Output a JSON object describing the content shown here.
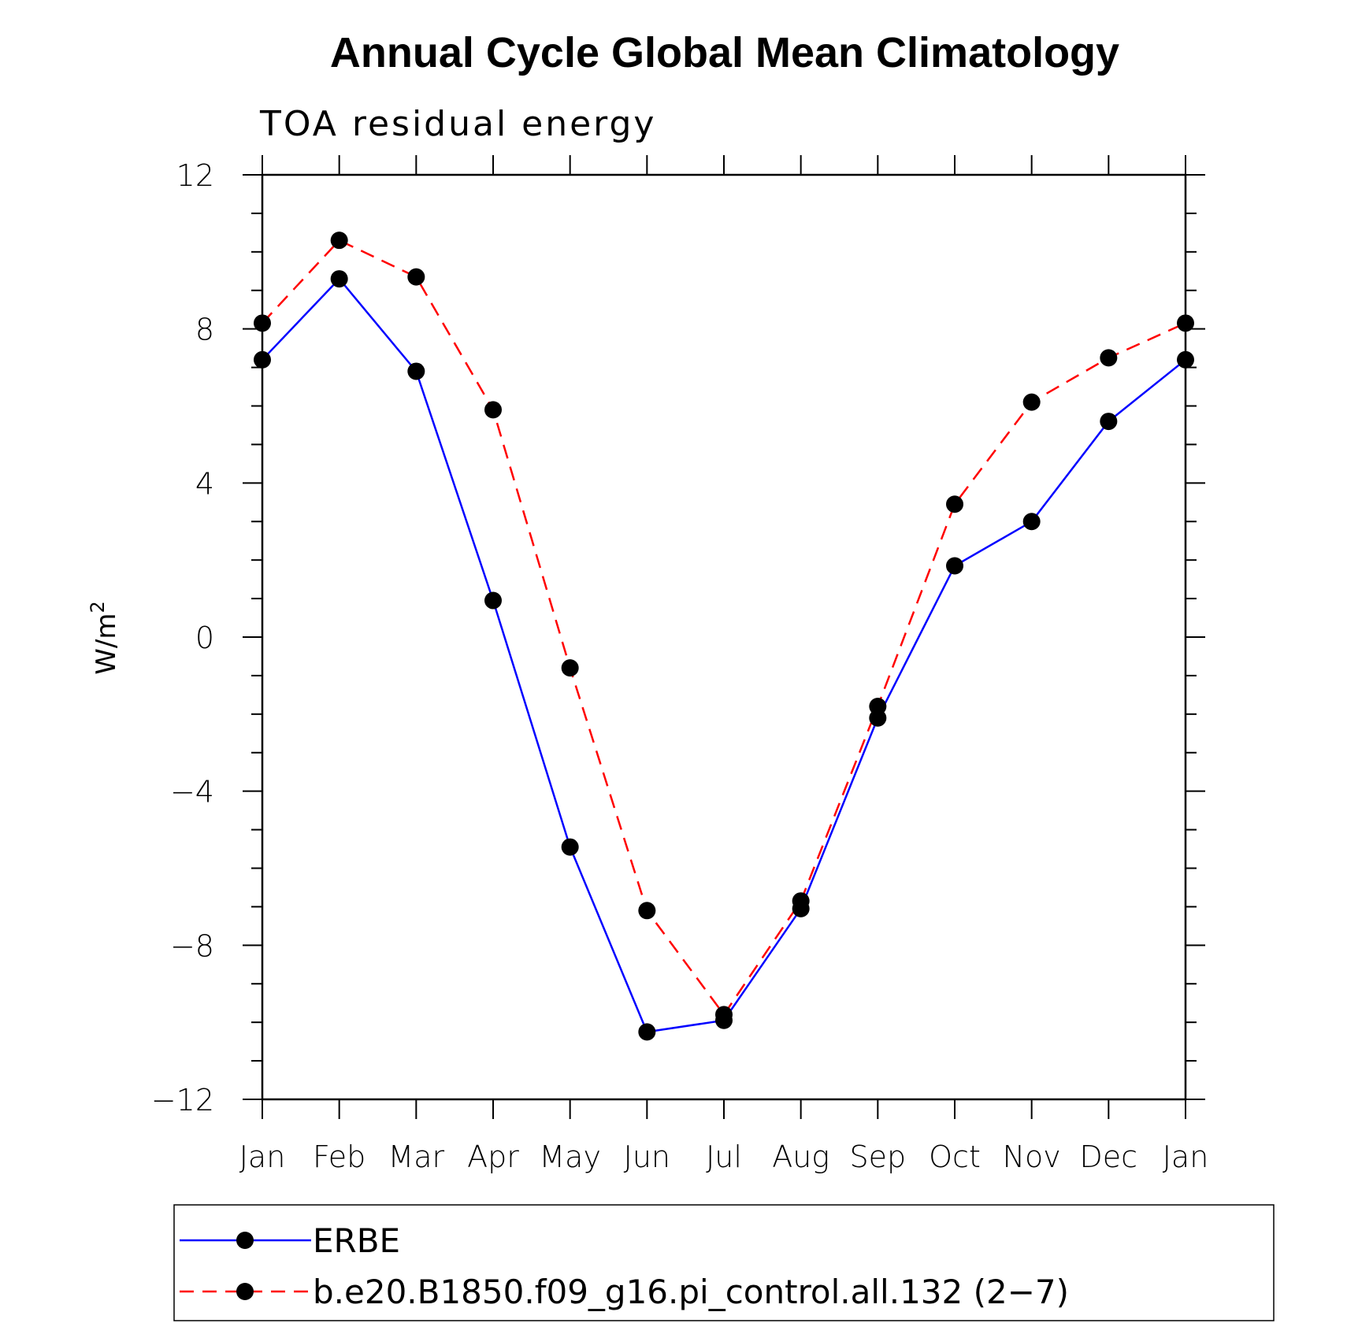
{
  "chart_data": {
    "type": "line",
    "title": "Annual Cycle Global Mean Climatology",
    "subtitle": "TOA residual energy",
    "ylabel": "W/m",
    "ylabel_sup": "2",
    "xlabel": "",
    "categories": [
      "Jan",
      "Feb",
      "Mar",
      "Apr",
      "May",
      "Jun",
      "Jul",
      "Aug",
      "Sep",
      "Oct",
      "Nov",
      "Dec",
      "Jan"
    ],
    "ylim": [
      -12,
      12
    ],
    "yticks": [
      -12,
      -8,
      -4,
      0,
      4,
      8,
      12
    ],
    "yticklabels": [
      "−12",
      "−8",
      "−4",
      "0",
      "4",
      "8",
      "12"
    ],
    "grid": false,
    "legend_position": "bottom",
    "series": [
      {
        "name": "ERBE",
        "color": "#0000ff",
        "dash": "solid",
        "values": [
          7.2,
          9.3,
          6.9,
          0.95,
          -5.45,
          -10.25,
          -9.95,
          -7.05,
          -2.1,
          1.85,
          3.0,
          5.6,
          7.2
        ]
      },
      {
        "name": "b.e20.B1850.f09_g16.pi_control.all.132 (2−7)",
        "color": "#ff0000",
        "dash": "dashed",
        "values": [
          8.15,
          10.3,
          9.35,
          5.9,
          -0.8,
          -7.1,
          -9.8,
          -6.85,
          -1.8,
          3.45,
          6.1,
          7.25,
          8.15
        ]
      }
    ]
  }
}
